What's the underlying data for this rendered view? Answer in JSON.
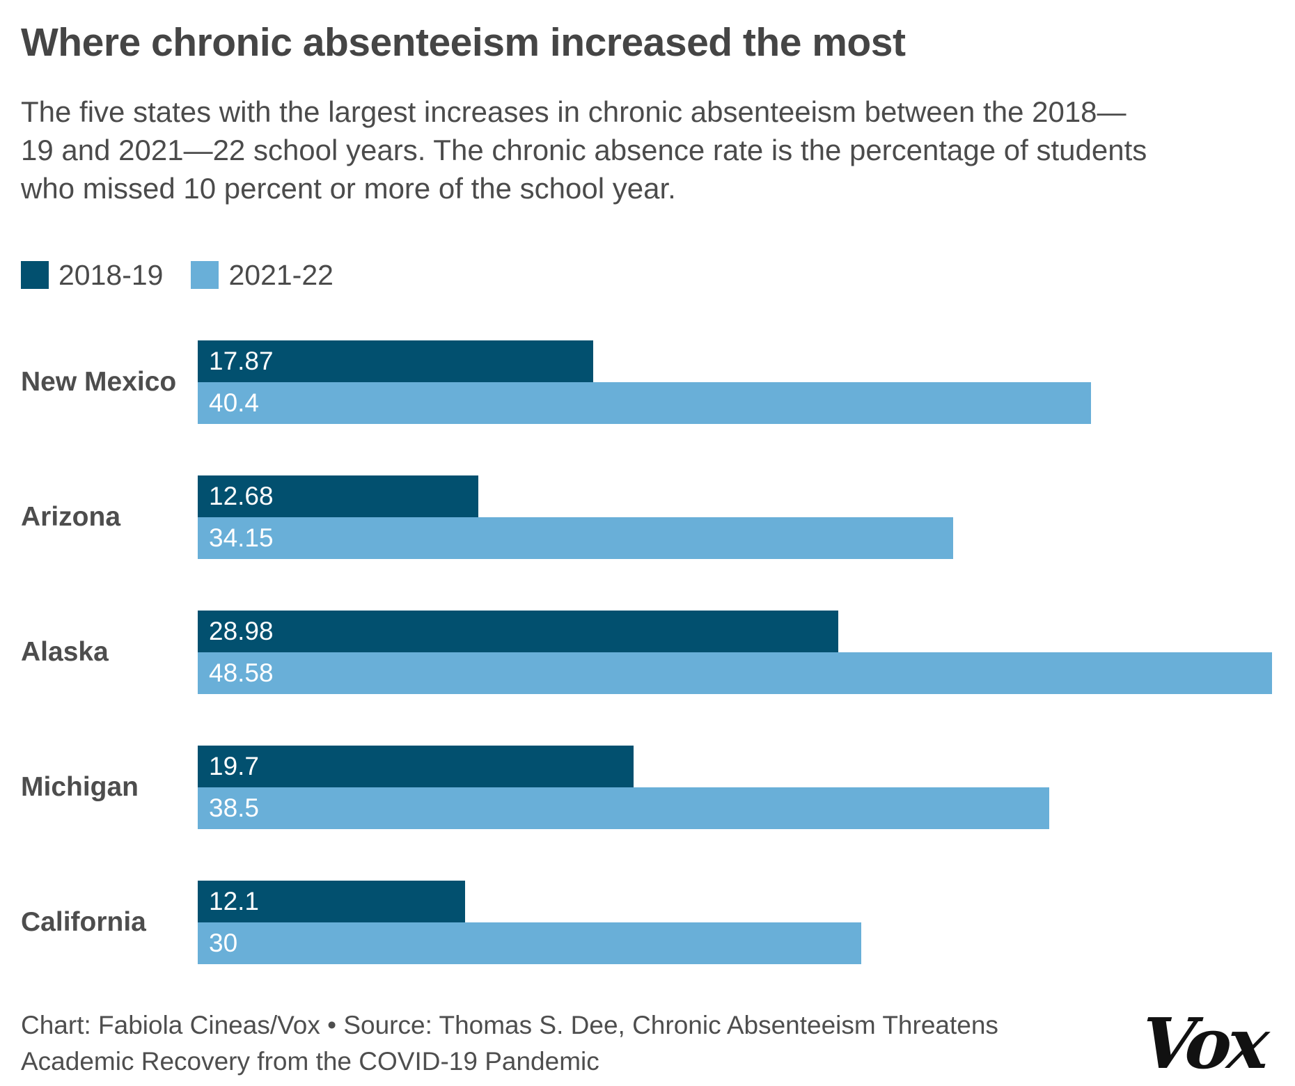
{
  "header": {
    "title": "Where chronic absenteeism increased the most",
    "subtitle_lines": [
      "The five states with the largest increases in chronic absenteeism between the 2018—",
      "19 and 2021—22 school years. The chronic absence rate is the percentage of students",
      "who missed 10 percent or more of the school year."
    ]
  },
  "chart_data": {
    "type": "bar",
    "orientation": "horizontal",
    "title": "Where chronic absenteeism increased the most",
    "categories": [
      "New Mexico",
      "Arizona",
      "Alaska",
      "Michigan",
      "California"
    ],
    "series": [
      {
        "name": "2018-19",
        "color": "#02506F",
        "values": [
          17.87,
          12.68,
          28.98,
          19.7,
          12.1
        ]
      },
      {
        "name": "2021-22",
        "color": "#69AFD8",
        "values": [
          40.4,
          34.15,
          48.58,
          38.5,
          30
        ]
      }
    ],
    "xlim": [
      0,
      48.58
    ],
    "grid": false,
    "legend_position": "top",
    "value_labels_inside_bars": true
  },
  "footer": {
    "credit_lines": [
      "Chart: Fabiola Cineas/Vox • Source: Thomas S. Dee, Chronic Absenteeism Threatens",
      "Academic Recovery from the COVID-19 Pandemic"
    ],
    "logo_text": "Vox"
  }
}
